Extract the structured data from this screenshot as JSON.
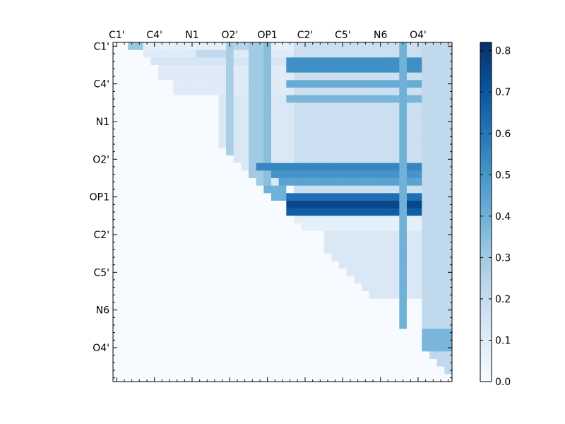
{
  "chart_data": {
    "type": "heatmap",
    "title": "",
    "xlabel": "",
    "ylabel": "",
    "colormap": "Blues",
    "colors": {
      "low": "#f7fbff",
      "high": "#08306b",
      "frame": "#000000"
    },
    "rows": 45,
    "cols": 45,
    "x_tick_labels": [
      "C1'",
      "C4'",
      "N1",
      "O2'",
      "OP1",
      "C2'",
      "C5'",
      "N6",
      "O4'"
    ],
    "y_tick_labels": [
      "C1'",
      "C4'",
      "N1",
      "O2'",
      "OP1",
      "C2'",
      "C5'",
      "N6",
      "O4'"
    ],
    "label_index_start": 0,
    "label_index_step": 5,
    "colorbar": {
      "range": [
        0.0,
        0.82
      ],
      "ticks": [
        0.0,
        0.1,
        0.2,
        0.3,
        0.4,
        0.5,
        0.6,
        0.7,
        0.8
      ],
      "tick_labels": [
        "0.0",
        "0.1",
        "0.2",
        "0.3",
        "0.4",
        "0.5",
        "0.6",
        "0.7",
        "0.8"
      ]
    },
    "default_value": 0.0,
    "upper_triangle_bands": [
      {
        "rows": [
          0,
          0
        ],
        "cols": [
          2,
          44
        ],
        "value": 0.08
      },
      {
        "rows": [
          0,
          0
        ],
        "cols": [
          2,
          3
        ],
        "value": 0.32
      },
      {
        "rows": [
          0,
          0
        ],
        "cols": [
          16,
          19
        ],
        "value": 0.25
      },
      {
        "rows": [
          1,
          1
        ],
        "cols": [
          4,
          44
        ],
        "value": 0.1
      },
      {
        "rows": [
          1,
          1
        ],
        "cols": [
          11,
          14
        ],
        "value": 0.22
      },
      {
        "rows": [
          2,
          2
        ],
        "cols": [
          5,
          44
        ],
        "value": 0.14
      },
      {
        "rows": [
          3,
          4
        ],
        "cols": [
          6,
          44
        ],
        "value": 0.1
      },
      {
        "rows": [
          5,
          6
        ],
        "cols": [
          8,
          44
        ],
        "value": 0.1
      },
      {
        "rows": [
          7,
          15
        ],
        "cols": [
          14,
          44
        ],
        "value": 0.12
      },
      {
        "rows": [
          16,
          18
        ],
        "cols": [
          17,
          44
        ],
        "value": 0.12
      },
      {
        "rows": [
          0,
          22
        ],
        "cols": [
          15,
          15
        ],
        "value": 0.28
      },
      {
        "rows": [
          0,
          22
        ],
        "cols": [
          20,
          20
        ],
        "value": 0.35
      },
      {
        "rows": [
          0,
          18
        ],
        "cols": [
          18,
          19
        ],
        "value": 0.3
      },
      {
        "rows": [
          0,
          22
        ],
        "cols": [
          24,
          44
        ],
        "value": 0.18
      },
      {
        "rows": [
          2,
          3
        ],
        "cols": [
          23,
          44
        ],
        "value": 0.52
      },
      {
        "rows": [
          5,
          5
        ],
        "cols": [
          23,
          44
        ],
        "value": 0.42
      },
      {
        "rows": [
          7,
          7
        ],
        "cols": [
          23,
          44
        ],
        "value": 0.38
      },
      {
        "rows": [
          16,
          16
        ],
        "cols": [
          19,
          44
        ],
        "value": 0.55
      },
      {
        "rows": [
          17,
          17
        ],
        "cols": [
          21,
          44
        ],
        "value": 0.5
      },
      {
        "rows": [
          18,
          18
        ],
        "cols": [
          22,
          44
        ],
        "value": 0.45
      },
      {
        "rows": [
          19,
          20
        ],
        "cols": [
          19,
          22
        ],
        "value": 0.4
      },
      {
        "rows": [
          20,
          20
        ],
        "cols": [
          23,
          44
        ],
        "value": 0.62
      },
      {
        "rows": [
          21,
          21
        ],
        "cols": [
          23,
          44
        ],
        "value": 0.75
      },
      {
        "rows": [
          22,
          22
        ],
        "cols": [
          23,
          44
        ],
        "value": 0.68
      },
      {
        "rows": [
          23,
          24
        ],
        "cols": [
          24,
          44
        ],
        "value": 0.08
      },
      {
        "rows": [
          25,
          33
        ],
        "cols": [
          28,
          44
        ],
        "value": 0.12
      },
      {
        "rows": [
          0,
          41
        ],
        "cols": [
          38,
          38
        ],
        "value": 0.4
      },
      {
        "rows": [
          0,
          44
        ],
        "cols": [
          41,
          44
        ],
        "value": 0.22
      },
      {
        "rows": [
          38,
          40
        ],
        "cols": [
          41,
          44
        ],
        "value": 0.38
      }
    ]
  }
}
